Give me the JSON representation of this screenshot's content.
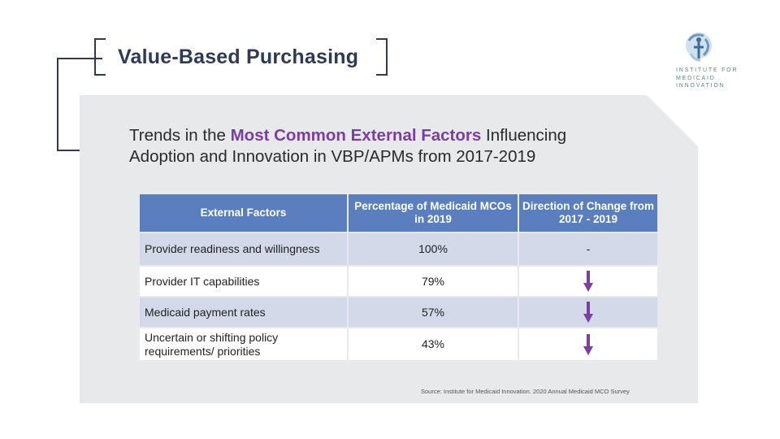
{
  "header": {
    "title": "Value-Based Purchasing"
  },
  "logo": {
    "lines": [
      "INSTITUTE FOR",
      "MEDICAID",
      "INNOVATION"
    ]
  },
  "panel": {
    "title_pre": "Trends in the ",
    "title_highlight": "Most Common External Factors",
    "title_post": " Influencing",
    "title_line2": "Adoption and Innovation in VBP/APMs from 2017-2019"
  },
  "table": {
    "headers": [
      "External Factors",
      "Percentage of Medicaid MCOs in 2019",
      "Direction of Change from 2017 - 2019"
    ],
    "rows": [
      {
        "factor": "Provider readiness and willingness",
        "pct": "100%",
        "direction": "-",
        "direction_icon": "none"
      },
      {
        "factor": "Provider IT capabilities",
        "pct": "79%",
        "direction": "",
        "direction_icon": "arrow-down-icon"
      },
      {
        "factor": "Medicaid payment rates",
        "pct": "57%",
        "direction": "",
        "direction_icon": "arrow-down-icon"
      },
      {
        "factor": "Uncertain or shifting policy requirements/ priorities",
        "pct": "43%",
        "direction": "",
        "direction_icon": "arrow-down-icon"
      }
    ]
  },
  "source": "Source: Institute for Medicaid Innovation. 2020 Annual Medicaid MCO Survey",
  "colors": {
    "accent": "#7b3fa0",
    "header_bg": "#5b7fbe",
    "row_alt": "#d3d9e9",
    "navy": "#2f3b55"
  }
}
